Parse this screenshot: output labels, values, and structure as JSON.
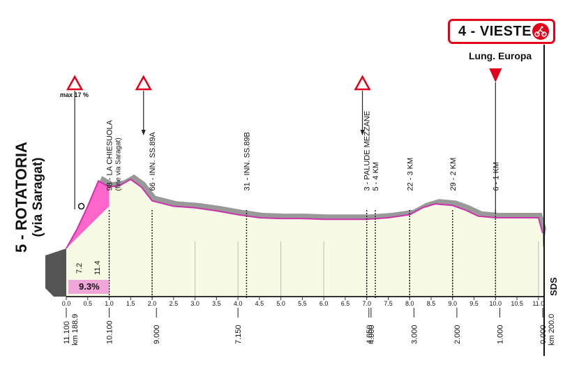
{
  "finish": {
    "title": "4 - VIESTE",
    "subtitle": "Lung. Europa",
    "icon": "cyclist-icon"
  },
  "start": {
    "name": "5 - ROTATORIA",
    "detail": "(via Saragat)"
  },
  "brand": "SDS",
  "steep_sign": {
    "label": "max 17 %",
    "icon": "steep-slope-warning-icon"
  },
  "gradient": {
    "pct": "9.3%",
    "length_labels": [
      "7.2",
      "11.4"
    ]
  },
  "colors": {
    "profile_fill": "#f7fbe6",
    "route_line": "#cc33aa",
    "climb_fill": "#ff66cc",
    "shadow": "#999999",
    "accent": "#e2001a"
  },
  "chart_data": {
    "type": "area",
    "xlim": [
      0,
      11.1
    ],
    "km_ticks": [
      "0.0",
      "0.5",
      "1.0",
      "1.5",
      "2.0",
      "2.5",
      "3.0",
      "3.5",
      "4.0",
      "4.5",
      "5.0",
      "5.5",
      "6.0",
      "6.5",
      "7.0",
      "7.5",
      "8.0",
      "8.5",
      "9.0",
      "9.5",
      "10.0",
      "10.5",
      "11.0"
    ],
    "km_tick_values": [
      0,
      0.5,
      1,
      1.5,
      2,
      2.5,
      3,
      3.5,
      4,
      4.5,
      5,
      5.5,
      6,
      6.5,
      7,
      7.5,
      8,
      8.5,
      9,
      9.5,
      10,
      10.5,
      11
    ],
    "elevation": {
      "km": [
        0,
        0.25,
        0.5,
        0.75,
        1.0,
        1.25,
        1.5,
        1.75,
        2.0,
        2.5,
        3.0,
        3.5,
        4.0,
        4.5,
        5.0,
        5.5,
        6.0,
        6.5,
        7.0,
        7.5,
        8.0,
        8.3,
        8.6,
        9.0,
        9.3,
        9.6,
        10.0,
        10.5,
        11.0,
        11.1
      ],
      "rel": [
        0.0,
        0.25,
        0.55,
        0.88,
        0.8,
        0.82,
        0.9,
        0.8,
        0.62,
        0.55,
        0.53,
        0.49,
        0.44,
        0.4,
        0.39,
        0.39,
        0.38,
        0.38,
        0.38,
        0.4,
        0.44,
        0.53,
        0.58,
        0.56,
        0.5,
        0.42,
        0.4,
        0.4,
        0.4,
        0.2
      ]
    },
    "waypoints": [
      {
        "label": "98 - LA CHIESUOLA",
        "sub": "(fine via Saragat)",
        "km": 1.0
      },
      {
        "label": "66 - INN. SS.89A",
        "km": 2.0
      },
      {
        "label": "31 - INN. SS.89B",
        "km": 4.2
      },
      {
        "label": "3 - PALUDE MEZZANE",
        "km": 7.0
      },
      {
        "label": "5 - 4 KM",
        "km": 7.2
      },
      {
        "label": "22 - 3 KM",
        "km": 8.0
      },
      {
        "label": "29 - 2 KM",
        "km": 9.0
      },
      {
        "label": "6 - 1 KM",
        "km": 10.0
      }
    ],
    "remaining_labels": [
      {
        "text": "11.100",
        "sub": "km 188.9",
        "km": 0
      },
      {
        "text": "10.100",
        "km": 1.0
      },
      {
        "text": "9.000",
        "km": 2.1
      },
      {
        "text": "7.150",
        "km": 4.0
      },
      {
        "text": "4.050",
        "km": 7.05
      },
      {
        "text": "4.000",
        "km": 7.1
      },
      {
        "text": "3.000",
        "km": 8.1
      },
      {
        "text": "2.000",
        "km": 9.1
      },
      {
        "text": "1.000",
        "km": 10.1
      },
      {
        "text": "0.000",
        "sub": "km 200.0",
        "km": 11.1
      }
    ],
    "warning_signs": [
      {
        "km": 0.1,
        "icon": "steep-slope-warning-icon"
      },
      {
        "km": 1.8,
        "icon": "sharp-bend-warning-icon"
      },
      {
        "km": 6.9,
        "icon": "sharp-bend-warning-icon"
      }
    ],
    "flamme_rouge_km": 10.0
  }
}
